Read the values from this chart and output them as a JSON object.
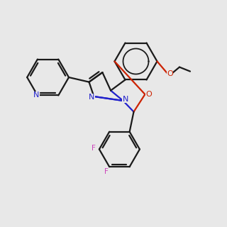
{
  "bg_color": "#e8e8e8",
  "bond_color": "#1a1a1a",
  "n_color": "#2222cc",
  "o_color": "#cc2200",
  "f_color": "#cc44bb",
  "lw": 1.6
}
